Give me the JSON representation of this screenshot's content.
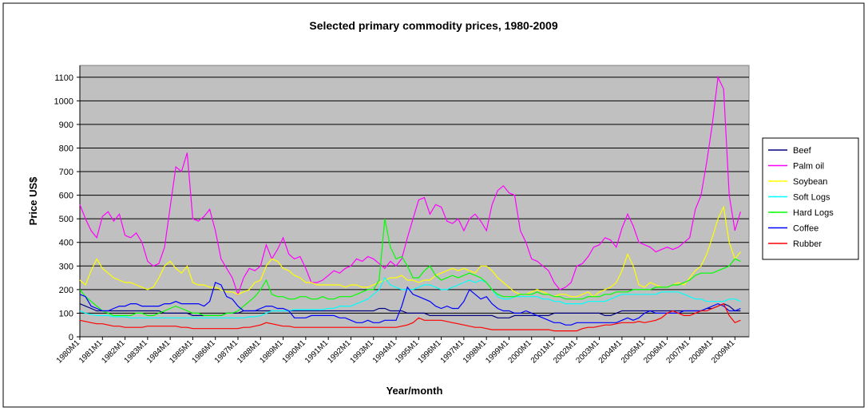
{
  "chart_data": {
    "type": "line",
    "title": "Selected primary commodity prices, 1980-2009",
    "x_label": "Year/month",
    "y_label": "Price US$",
    "ylim": [
      0,
      1150
    ],
    "yticks": [
      0,
      100,
      200,
      300,
      400,
      500,
      600,
      700,
      800,
      900,
      1000,
      1100
    ],
    "grid": true,
    "legend": "right",
    "categories": [
      "1980M1",
      null,
      null,
      null,
      "1981M1",
      null,
      null,
      null,
      "1982M1",
      null,
      null,
      null,
      "1983M1",
      null,
      null,
      null,
      "1984M1",
      null,
      null,
      null,
      "1985M1",
      null,
      null,
      null,
      "1986M1",
      null,
      null,
      null,
      "1987M1",
      null,
      null,
      null,
      "1988M1",
      null,
      null,
      null,
      "1989M1",
      null,
      null,
      null,
      "1990M1",
      null,
      null,
      null,
      "1991M1",
      null,
      null,
      null,
      "1992M1",
      null,
      null,
      null,
      "1993M1",
      null,
      null,
      null,
      "1994M1",
      null,
      null,
      null,
      "1995M1",
      null,
      null,
      null,
      "1996M1",
      null,
      null,
      null,
      "1997M1",
      null,
      null,
      null,
      "1998M1",
      null,
      null,
      null,
      "1999M1",
      null,
      null,
      null,
      "2000M1",
      null,
      null,
      null,
      "2001M1",
      null,
      null,
      null,
      "2002M1",
      null,
      null,
      null,
      "2003M1",
      null,
      null,
      null,
      "2004M1",
      null,
      null,
      null,
      "2005M1",
      null,
      null,
      null,
      "2006M1",
      null,
      null,
      null,
      "2007M1",
      null,
      null,
      null,
      "2008M1",
      null,
      null,
      null,
      "2009M1",
      null
    ],
    "series": [
      {
        "name": "Beef",
        "color": "#000080",
        "values": [
          140,
          130,
          120,
          110,
          110,
          110,
          110,
          110,
          110,
          110,
          110,
          110,
          110,
          110,
          110,
          100,
          100,
          100,
          100,
          100,
          90,
          90,
          90,
          90,
          90,
          90,
          100,
          100,
          100,
          110,
          110,
          110,
          110,
          110,
          110,
          110,
          110,
          110,
          110,
          110,
          110,
          110,
          110,
          110,
          110,
          110,
          110,
          110,
          110,
          110,
          110,
          110,
          110,
          120,
          120,
          110,
          110,
          110,
          100,
          100,
          100,
          100,
          90,
          90,
          90,
          90,
          90,
          90,
          90,
          90,
          90,
          90,
          90,
          90,
          80,
          80,
          80,
          90,
          90,
          90,
          90,
          90,
          90,
          90,
          100,
          100,
          100,
          100,
          100,
          100,
          100,
          100,
          100,
          90,
          90,
          100,
          110,
          110,
          110,
          110,
          110,
          110,
          110,
          110,
          110,
          110,
          110,
          110,
          110,
          110,
          110,
          120,
          120,
          130,
          140,
          130,
          110,
          110
        ]
      },
      {
        "name": "Palm oil",
        "color": "#ff00ff",
        "values": [
          560,
          500,
          450,
          420,
          510,
          530,
          490,
          520,
          430,
          420,
          440,
          400,
          320,
          300,
          310,
          380,
          550,
          720,
          700,
          780,
          500,
          490,
          510,
          540,
          450,
          330,
          290,
          250,
          180,
          250,
          290,
          280,
          300,
          390,
          330,
          370,
          420,
          350,
          330,
          340,
          290,
          230,
          230,
          240,
          260,
          280,
          270,
          290,
          300,
          330,
          320,
          340,
          330,
          310,
          290,
          320,
          300,
          330,
          420,
          500,
          580,
          590,
          520,
          560,
          550,
          490,
          480,
          500,
          450,
          500,
          520,
          490,
          450,
          560,
          620,
          640,
          610,
          600,
          450,
          400,
          330,
          320,
          300,
          280,
          230,
          200,
          210,
          230,
          300,
          310,
          340,
          380,
          390,
          420,
          410,
          380,
          460,
          520,
          470,
          400,
          390,
          380,
          360,
          370,
          380,
          370,
          380,
          400,
          420,
          540,
          600,
          740,
          900,
          1100,
          1050,
          600,
          450,
          530
        ]
      },
      {
        "name": "Soybean",
        "color": "#ffff00",
        "values": [
          240,
          220,
          280,
          330,
          290,
          270,
          250,
          240,
          230,
          230,
          220,
          210,
          200,
          210,
          250,
          300,
          320,
          290,
          270,
          300,
          230,
          220,
          220,
          210,
          210,
          200,
          190,
          190,
          180,
          190,
          200,
          230,
          240,
          300,
          330,
          320,
          290,
          280,
          260,
          250,
          230,
          230,
          220,
          220,
          220,
          220,
          220,
          210,
          220,
          220,
          210,
          210,
          220,
          230,
          240,
          250,
          250,
          260,
          240,
          240,
          230,
          240,
          240,
          260,
          270,
          280,
          290,
          280,
          290,
          280,
          270,
          300,
          300,
          280,
          250,
          230,
          210,
          190,
          180,
          180,
          190,
          200,
          190,
          180,
          170,
          180,
          180,
          170,
          170,
          180,
          190,
          170,
          190,
          200,
          210,
          230,
          280,
          350,
          300,
          220,
          210,
          230,
          220,
          210,
          210,
          220,
          230,
          220,
          250,
          280,
          300,
          350,
          420,
          500,
          550,
          400,
          330,
          360
        ]
      },
      {
        "name": "Soft Logs",
        "color": "#00ffff",
        "values": [
          110,
          100,
          95,
          90,
          90,
          90,
          85,
          85,
          85,
          80,
          80,
          80,
          80,
          80,
          80,
          80,
          80,
          80,
          80,
          80,
          80,
          80,
          80,
          80,
          80,
          80,
          80,
          80,
          80,
          80,
          85,
          85,
          90,
          100,
          110,
          110,
          110,
          110,
          115,
          115,
          115,
          115,
          115,
          115,
          120,
          120,
          130,
          130,
          130,
          140,
          150,
          160,
          180,
          200,
          250,
          220,
          210,
          200,
          200,
          200,
          210,
          220,
          220,
          210,
          200,
          200,
          210,
          220,
          230,
          240,
          230,
          240,
          230,
          200,
          170,
          160,
          160,
          170,
          170,
          170,
          170,
          170,
          160,
          160,
          150,
          150,
          140,
          140,
          140,
          140,
          150,
          150,
          150,
          150,
          160,
          170,
          180,
          180,
          180,
          180,
          180,
          180,
          180,
          190,
          190,
          190,
          190,
          180,
          170,
          160,
          160,
          150,
          150,
          150,
          150,
          160,
          160,
          150
        ]
      },
      {
        "name": "Hard Logs",
        "color": "#00ff00",
        "values": [
          200,
          170,
          150,
          130,
          110,
          100,
          90,
          90,
          90,
          90,
          100,
          100,
          90,
          90,
          100,
          110,
          120,
          130,
          120,
          110,
          100,
          100,
          90,
          90,
          90,
          90,
          100,
          100,
          110,
          130,
          150,
          170,
          200,
          240,
          180,
          170,
          170,
          160,
          160,
          170,
          170,
          160,
          160,
          170,
          160,
          160,
          170,
          170,
          170,
          180,
          190,
          200,
          200,
          240,
          500,
          380,
          330,
          340,
          300,
          250,
          250,
          280,
          300,
          260,
          240,
          250,
          260,
          250,
          260,
          270,
          260,
          250,
          230,
          200,
          180,
          170,
          170,
          170,
          180,
          180,
          180,
          190,
          180,
          180,
          170,
          170,
          160,
          160,
          160,
          160,
          170,
          170,
          170,
          180,
          180,
          190,
          190,
          190,
          200,
          200,
          200,
          200,
          210,
          210,
          210,
          220,
          220,
          230,
          240,
          260,
          270,
          270,
          270,
          280,
          290,
          300,
          330,
          320
        ]
      },
      {
        "name": "Coffee",
        "color": "#0000ff",
        "values": [
          180,
          170,
          130,
          120,
          110,
          110,
          120,
          130,
          130,
          140,
          140,
          130,
          130,
          130,
          130,
          140,
          140,
          150,
          140,
          140,
          140,
          140,
          130,
          150,
          230,
          220,
          170,
          160,
          130,
          110,
          110,
          110,
          120,
          130,
          130,
          120,
          120,
          110,
          80,
          80,
          80,
          90,
          90,
          90,
          90,
          90,
          80,
          80,
          70,
          60,
          60,
          70,
          60,
          60,
          70,
          70,
          70,
          130,
          210,
          180,
          170,
          160,
          150,
          130,
          120,
          130,
          120,
          120,
          150,
          200,
          180,
          160,
          170,
          140,
          120,
          110,
          110,
          100,
          100,
          110,
          100,
          90,
          80,
          70,
          60,
          60,
          50,
          50,
          60,
          60,
          60,
          60,
          60,
          60,
          60,
          60,
          70,
          80,
          70,
          80,
          100,
          110,
          100,
          100,
          100,
          100,
          100,
          110,
          110,
          110,
          110,
          120,
          130,
          140,
          130,
          110,
          110,
          120
        ]
      },
      {
        "name": "Rubber",
        "color": "#ff0000",
        "values": [
          70,
          65,
          60,
          55,
          55,
          50,
          45,
          45,
          40,
          40,
          40,
          40,
          45,
          45,
          45,
          45,
          45,
          45,
          40,
          40,
          35,
          35,
          35,
          35,
          35,
          35,
          35,
          35,
          35,
          40,
          40,
          45,
          50,
          60,
          55,
          50,
          45,
          45,
          40,
          40,
          40,
          40,
          40,
          40,
          40,
          40,
          40,
          40,
          40,
          40,
          40,
          40,
          40,
          40,
          40,
          40,
          40,
          45,
          50,
          60,
          80,
          70,
          70,
          70,
          70,
          65,
          60,
          55,
          50,
          45,
          40,
          40,
          35,
          30,
          30,
          30,
          30,
          30,
          30,
          30,
          30,
          30,
          30,
          30,
          25,
          25,
          25,
          25,
          25,
          35,
          40,
          40,
          45,
          50,
          50,
          55,
          60,
          60,
          60,
          65,
          60,
          65,
          70,
          80,
          100,
          110,
          100,
          90,
          90,
          100,
          110,
          110,
          120,
          130,
          140,
          90,
          60,
          70
        ]
      }
    ]
  }
}
